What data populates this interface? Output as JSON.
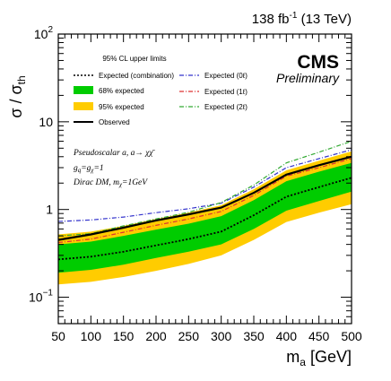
{
  "chart_data": {
    "type": "line",
    "header": {
      "lumi": "138 fb",
      "lumi_exp": "-1",
      "energy": " (13 TeV)",
      "experiment": "CMS",
      "status": "Preliminary"
    },
    "xlabel": "m",
    "xlabel_sub": "a",
    "xlabel_unit": " [GeV]",
    "ylabel": "σ / σ",
    "ylabel_sub": "th",
    "xlim": [
      50,
      500
    ],
    "ylim": [
      0.05,
      100
    ],
    "yscale": "log",
    "x_ticks": [
      "50",
      "100",
      "150",
      "200",
      "250",
      "300",
      "350",
      "400",
      "450",
      "500"
    ],
    "y_ticks": [
      {
        "base": "10",
        "exp": "−1"
      },
      {
        "base": "1",
        "exp": ""
      },
      {
        "base": "10",
        "exp": ""
      },
      {
        "base": "10",
        "exp": "2"
      }
    ],
    "legend_title": "95% CL upper limits",
    "legend": {
      "combination": "Expected (combination)",
      "band68": "68% expected",
      "band95": "95% expected",
      "observed": "Observed",
      "exp0l": "Expected (0ℓ)",
      "exp1l": "Expected (1ℓ)",
      "exp2l": "Expected (2ℓ)"
    },
    "annotations": {
      "line1": "Pseudoscalar a, a→ χχ̄",
      "line2": "g",
      "line2_sub1": "q",
      "line2_mid": "=g",
      "line2_sub2": "χ",
      "line2_end": "=1",
      "line3": "Dirac DM, m",
      "line3_sub": "χ",
      "line3_end": "=1GeV"
    },
    "colors": {
      "band68": "#00cc00",
      "band95": "#ffcc00",
      "exp0l": "#3333cc",
      "exp1l": "#dd3333",
      "exp2l": "#33aa33",
      "observed": "#000000",
      "combination": "#000000"
    },
    "x": [
      50,
      100,
      150,
      200,
      250,
      300,
      350,
      400,
      450,
      500
    ],
    "series": [
      {
        "name": "Observed",
        "values": [
          0.45,
          0.52,
          0.62,
          0.75,
          0.88,
          1.05,
          1.55,
          2.5,
          3.2,
          4.0
        ]
      },
      {
        "name": "Expected (combination)",
        "values": [
          0.27,
          0.29,
          0.33,
          0.39,
          0.46,
          0.56,
          0.86,
          1.4,
          1.8,
          2.3
        ]
      },
      {
        "name": "Expected (0ℓ)",
        "values": [
          0.73,
          0.76,
          0.82,
          0.92,
          1.02,
          1.18,
          1.8,
          3.0,
          3.8,
          4.8
        ]
      },
      {
        "name": "Expected (1ℓ)",
        "values": [
          0.42,
          0.46,
          0.55,
          0.66,
          0.78,
          0.95,
          1.45,
          2.4,
          3.0,
          3.8
        ]
      },
      {
        "name": "Expected (2ℓ)",
        "values": [
          0.5,
          0.53,
          0.65,
          0.78,
          0.93,
          1.2,
          1.9,
          3.4,
          4.5,
          6.0
        ]
      }
    ],
    "bands": {
      "band95_low": [
        0.14,
        0.15,
        0.17,
        0.2,
        0.24,
        0.3,
        0.45,
        0.72,
        0.92,
        1.15
      ],
      "band68_low": [
        0.19,
        0.205,
        0.235,
        0.28,
        0.33,
        0.4,
        0.6,
        0.97,
        1.25,
        1.6
      ],
      "band68_high": [
        0.4,
        0.43,
        0.5,
        0.59,
        0.69,
        0.84,
        1.28,
        2.1,
        2.7,
        3.4
      ],
      "band95_high": [
        0.52,
        0.56,
        0.65,
        0.78,
        0.92,
        1.12,
        1.7,
        2.8,
        3.6,
        4.6
      ]
    }
  }
}
